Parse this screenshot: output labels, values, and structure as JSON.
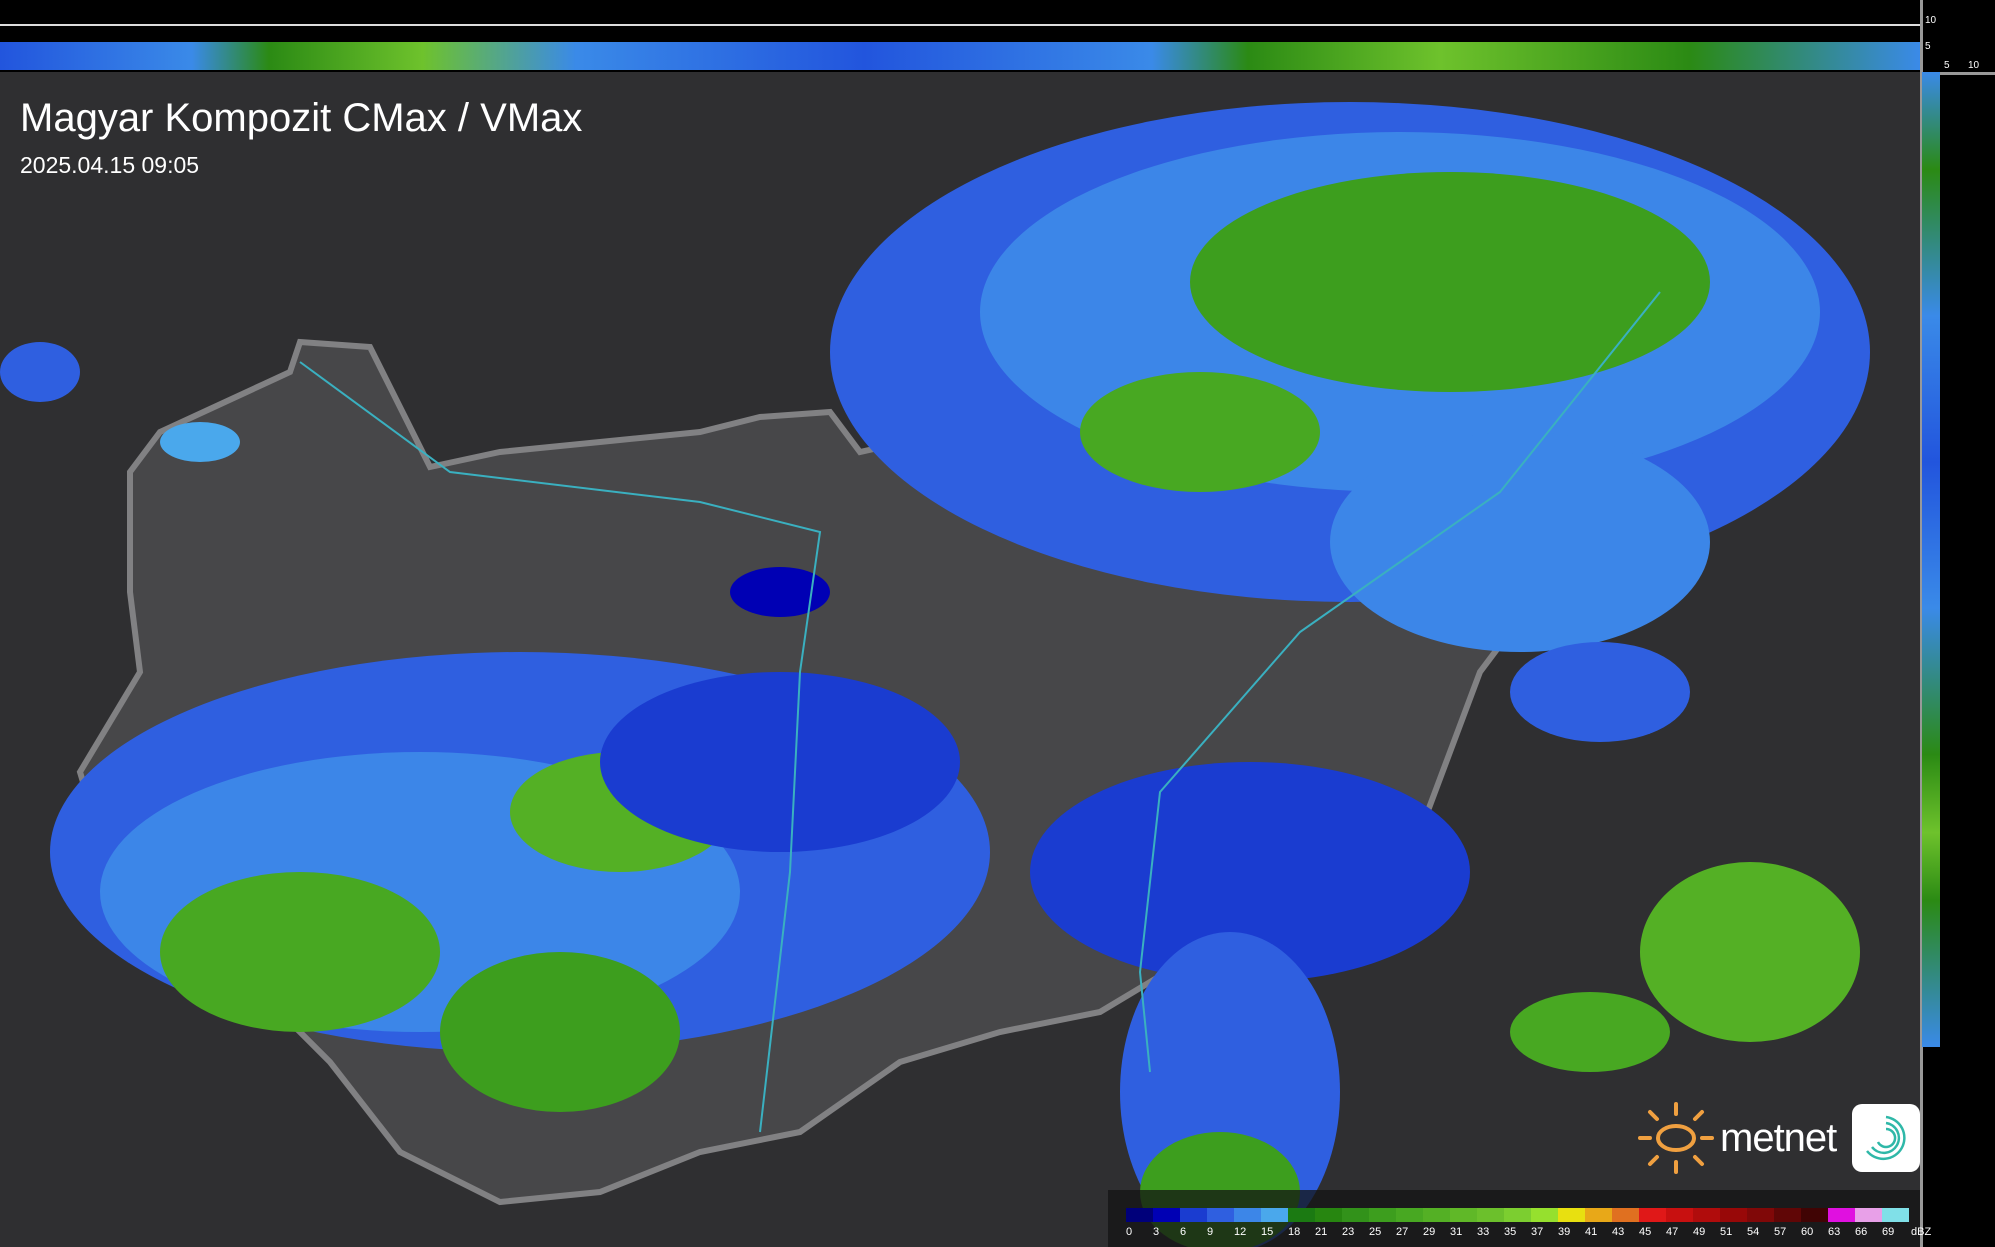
{
  "header": {
    "title": "Magyar Kompozit CMax / VMax",
    "timestamp": "2025.04.15 09:05"
  },
  "profile_axes": {
    "vertical_ticks": [
      "10",
      "5"
    ],
    "horizontal_ticks": [
      "5",
      "10"
    ]
  },
  "legend": {
    "unit": "dBZ",
    "labels": [
      "0",
      "3",
      "6",
      "9",
      "12",
      "15",
      "18",
      "21",
      "23",
      "25",
      "27",
      "29",
      "31",
      "33",
      "35",
      "37",
      "39",
      "41",
      "43",
      "45",
      "47",
      "49",
      "51",
      "54",
      "57",
      "60",
      "63",
      "66",
      "69"
    ],
    "colors": [
      "#00007a",
      "#0000b4",
      "#1a3cd0",
      "#2f5fe0",
      "#3c86e8",
      "#4aa8ec",
      "#1b7a12",
      "#278610",
      "#32921a",
      "#3d9e1e",
      "#48a822",
      "#54b025",
      "#60b828",
      "#6cc02c",
      "#7cce30",
      "#96e02e",
      "#e8e010",
      "#e8a818",
      "#e07020",
      "#e01818",
      "#c81010",
      "#b00c0c",
      "#980808",
      "#800808",
      "#600606",
      "#400404",
      "#e010e0",
      "#e8a0e8",
      "#80e0e8"
    ]
  },
  "branding": {
    "name": "metnet",
    "sun_color": "#f0a040",
    "icon_color": "#2fb8a8"
  },
  "map_colors": {
    "terrain": "#2f2f31",
    "country_fill": "#4a4a4c",
    "border": "#8a8a8c",
    "rivers": "#3ab0c0",
    "cities": "#ffffff"
  }
}
